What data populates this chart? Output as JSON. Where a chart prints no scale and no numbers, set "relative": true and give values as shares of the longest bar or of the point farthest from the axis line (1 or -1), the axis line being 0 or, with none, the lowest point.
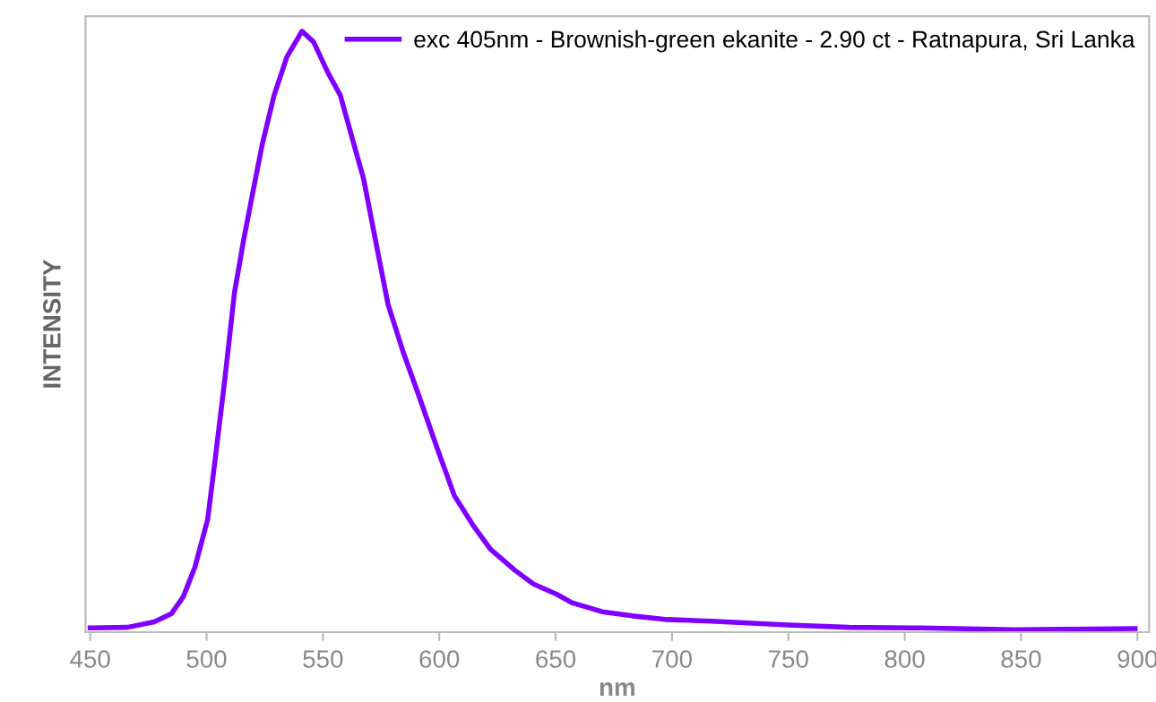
{
  "chart_data": {
    "type": "line",
    "relative": true,
    "xlabel": "nm",
    "ylabel": "INTENSITY",
    "xlim": [
      448,
      905
    ],
    "xticks": [
      450,
      500,
      550,
      600,
      650,
      700,
      750,
      800,
      850,
      900
    ],
    "legend": "top right",
    "grid": false,
    "marker": "none",
    "line_style": "solid",
    "series": [
      {
        "name": "exc 405nm - Brownish-green ekanite - 2.90 ct - Ratnapura, Sri Lanka",
        "color": "#8000ff",
        "x": [
          450,
          466,
          477.5,
          485,
          490,
          495,
          500.5,
          504,
          508,
          512,
          516,
          520,
          524,
          529,
          534.5,
          541,
          546,
          552,
          557.5,
          562.5,
          567.5,
          573,
          578,
          584.5,
          591,
          599,
          606.5,
          614.5,
          622,
          632.5,
          640.5,
          650.5,
          657,
          670,
          683,
          698,
          719,
          750,
          776,
          807,
          847,
          899
        ],
        "values": [
          0.007,
          0.008,
          0.017,
          0.031,
          0.059,
          0.108,
          0.188,
          0.297,
          0.426,
          0.565,
          0.654,
          0.734,
          0.813,
          0.893,
          0.957,
          1.0,
          0.982,
          0.932,
          0.893,
          0.823,
          0.754,
          0.644,
          0.545,
          0.466,
          0.396,
          0.307,
          0.227,
          0.178,
          0.138,
          0.103,
          0.08,
          0.063,
          0.049,
          0.034,
          0.027,
          0.021,
          0.018,
          0.012,
          0.008,
          0.007,
          0.004,
          0.006
        ]
      }
    ]
  }
}
